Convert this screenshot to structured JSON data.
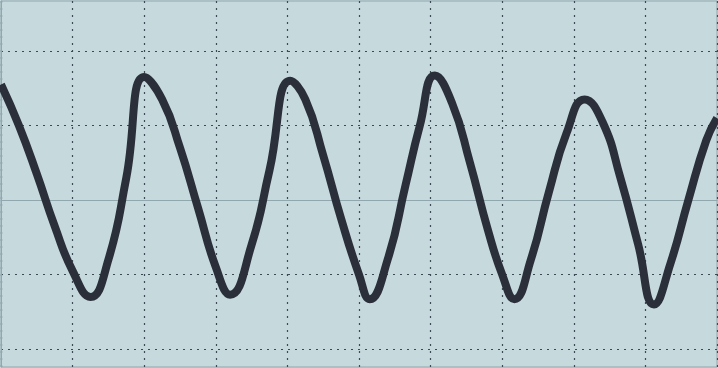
{
  "chart_data": {
    "type": "line",
    "x": [
      0.0,
      0.25,
      0.5,
      0.75,
      1.0,
      1.25,
      1.5,
      1.75,
      2.0,
      2.25,
      2.5,
      2.75,
      3.0,
      3.2,
      3.5,
      3.75,
      4.04,
      4.25,
      4.5,
      4.75,
      5.0,
      5.15,
      5.4,
      5.65,
      5.85,
      6.06,
      6.3,
      6.55,
      6.8,
      7.0,
      7.17,
      7.4,
      7.65,
      7.9,
      8.15,
      8.4,
      8.65,
      8.9,
      9.12,
      9.35,
      9.6,
      9.85,
      10.0
    ],
    "values": [
      1.55,
      1.0,
      0.35,
      -0.35,
      -0.95,
      -1.3,
      -0.8,
      0.3,
      1.65,
      1.35,
      0.7,
      -0.1,
      -0.9,
      -1.27,
      -0.6,
      0.4,
      1.6,
      1.35,
      0.6,
      -0.25,
      -1.0,
      -1.33,
      -0.8,
      0.2,
      1.0,
      1.67,
      1.3,
      0.5,
      -0.4,
      -1.0,
      -1.33,
      -0.8,
      0.1,
      0.9,
      1.35,
      1.05,
      0.3,
      -0.6,
      -1.4,
      -0.85,
      0.0,
      0.8,
      1.1
    ],
    "color": "#2b2f3a",
    "marker": "none",
    "line_style": "solid",
    "xlim": [
      0,
      10
    ],
    "xticks": [
      0,
      1,
      2,
      3,
      4,
      5,
      6,
      7,
      8,
      9,
      10
    ],
    "ylim": [
      -2.24,
      2.67
    ],
    "yticks": [
      -2,
      -1,
      0,
      1,
      2
    ],
    "grid": true,
    "tick_labels": false
  }
}
